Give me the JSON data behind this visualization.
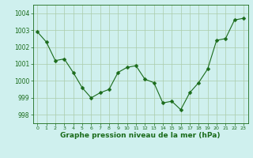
{
  "x": [
    0,
    1,
    2,
    3,
    4,
    5,
    6,
    7,
    8,
    9,
    10,
    11,
    12,
    13,
    14,
    15,
    16,
    17,
    18,
    19,
    20,
    21,
    22,
    23
  ],
  "y": [
    1002.9,
    1002.3,
    1001.2,
    1001.3,
    1000.5,
    999.6,
    999.0,
    999.3,
    999.5,
    1000.5,
    1000.8,
    1000.9,
    1000.1,
    999.9,
    998.7,
    998.8,
    998.3,
    999.3,
    999.9,
    1000.7,
    1002.4,
    1002.5,
    1003.6,
    1003.7
  ],
  "line_color": "#1a6b1a",
  "marker": "D",
  "marker_size": 2.5,
  "bg_color": "#cff0ee",
  "grid_color": "#aaccaa",
  "xlabel": "Graphe pression niveau de la mer (hPa)",
  "xlabel_color": "#1a6b1a",
  "tick_color": "#1a6b1a",
  "ylim": [
    997.5,
    1004.5
  ],
  "xlim": [
    -0.5,
    23.5
  ],
  "yticks": [
    998,
    999,
    1000,
    1001,
    1002,
    1003,
    1004
  ],
  "xtick_labels": [
    "0",
    "1",
    "2",
    "3",
    "4",
    "5",
    "6",
    "7",
    "8",
    "9",
    "10",
    "11",
    "12",
    "13",
    "14",
    "15",
    "16",
    "17",
    "18",
    "19",
    "20",
    "21",
    "22",
    "23"
  ],
  "fig_width": 3.2,
  "fig_height": 2.0,
  "dpi": 100
}
